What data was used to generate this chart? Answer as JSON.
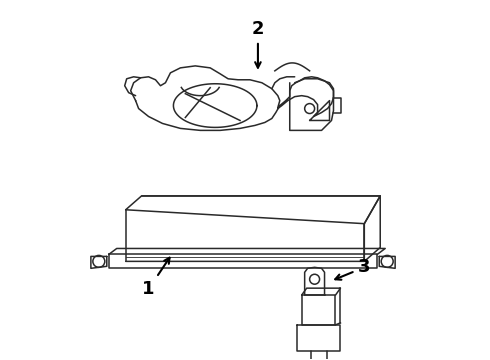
{
  "background_color": "#ffffff",
  "line_color": "#2a2a2a",
  "label_color": "#000000",
  "figsize": [
    4.9,
    3.6
  ],
  "dpi": 100
}
